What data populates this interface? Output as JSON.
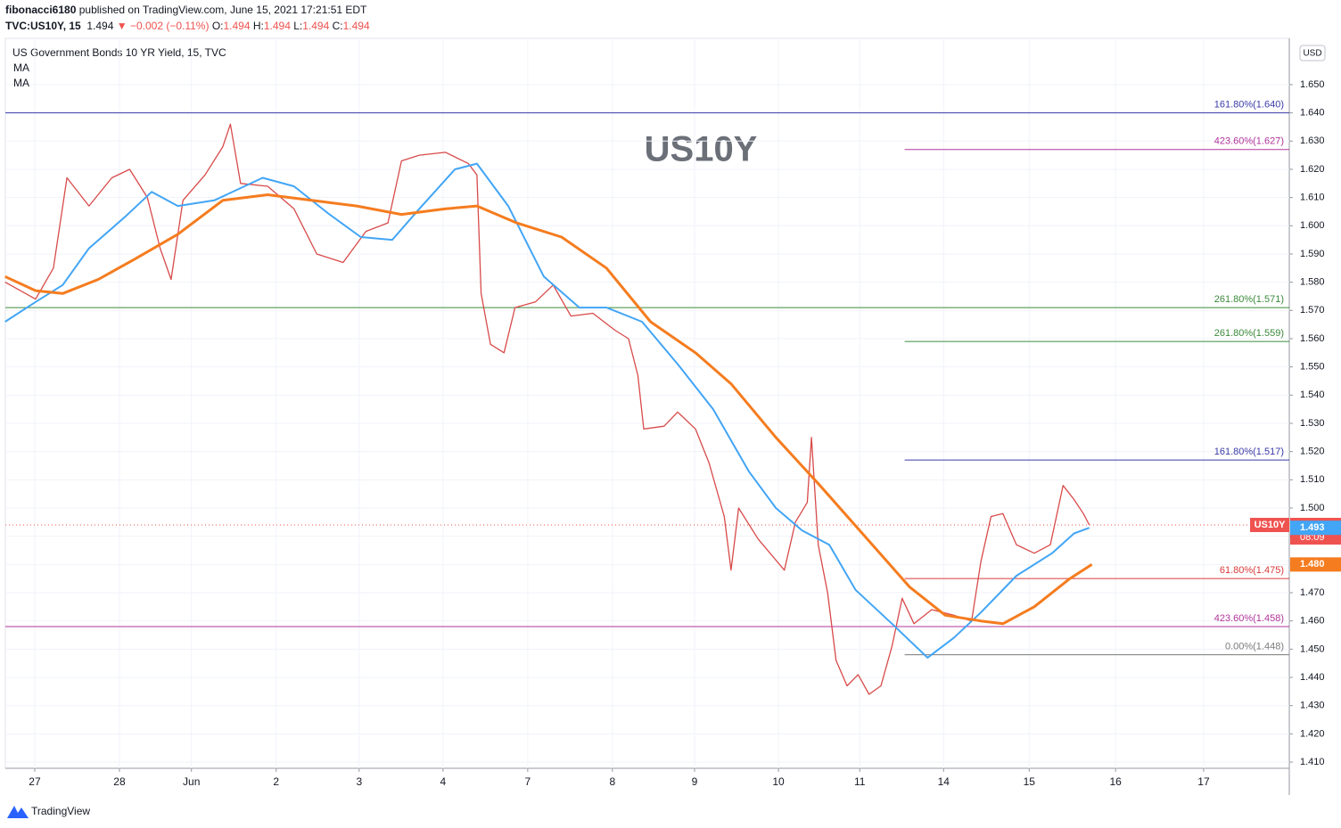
{
  "header": {
    "author": "fibonacci6180",
    "published": "published on TradingView.com, June 15, 2021 17:21:51 EDT",
    "symbol": "TVC:US10Y, 15",
    "last": "1.494",
    "change": "▼ −0.002 (−0.11%)",
    "ohlc": [
      {
        "key": "O:",
        "value": "1.494"
      },
      {
        "key": "H:",
        "value": "1.494"
      },
      {
        "key": "L:",
        "value": "1.494"
      },
      {
        "key": "C:",
        "value": "1.494"
      }
    ]
  },
  "footer": {
    "brand": "TradingView"
  },
  "chart_data": {
    "type": "line",
    "title": "US10Y",
    "instrument": "US Government Bonds 10 YR Yield, 15, TVC",
    "currency": "USD",
    "xlim": [
      -0.347,
      14.811
    ],
    "ylim": [
      1.4078,
      1.6664
    ],
    "grid": true,
    "xticks": [
      {
        "value": 0,
        "label": "27"
      },
      {
        "value": 1,
        "label": "28"
      },
      {
        "value": 1.85,
        "label": "Jun"
      },
      {
        "value": 2.85,
        "label": "2"
      },
      {
        "value": 3.83,
        "label": "3"
      },
      {
        "value": 4.82,
        "label": "4"
      },
      {
        "value": 5.82,
        "label": "7"
      },
      {
        "value": 6.82,
        "label": "8"
      },
      {
        "value": 7.79,
        "label": "9"
      },
      {
        "value": 8.78,
        "label": "10"
      },
      {
        "value": 9.74,
        "label": "11"
      },
      {
        "value": 10.73,
        "label": "14"
      },
      {
        "value": 11.74,
        "label": "15"
      },
      {
        "value": 12.76,
        "label": "16"
      },
      {
        "value": 13.8,
        "label": "17"
      }
    ],
    "yticks": [
      {
        "value": 1.41,
        "label": "1.410"
      },
      {
        "value": 1.42,
        "label": "1.420"
      },
      {
        "value": 1.43,
        "label": "1.430"
      },
      {
        "value": 1.44,
        "label": "1.440"
      },
      {
        "value": 1.45,
        "label": "1.450"
      },
      {
        "value": 1.46,
        "label": "1.460"
      },
      {
        "value": 1.47,
        "label": "1.470"
      },
      {
        "value": 1.48,
        "label": "1.480"
      },
      {
        "value": 1.49,
        "label": "1.490"
      },
      {
        "value": 1.5,
        "label": "1.500"
      },
      {
        "value": 1.51,
        "label": "1.510"
      },
      {
        "value": 1.52,
        "label": "1.520"
      },
      {
        "value": 1.53,
        "label": "1.530"
      },
      {
        "value": 1.54,
        "label": "1.540"
      },
      {
        "value": 1.55,
        "label": "1.550"
      },
      {
        "value": 1.56,
        "label": "1.560"
      },
      {
        "value": 1.57,
        "label": "1.570"
      },
      {
        "value": 1.58,
        "label": "1.580"
      },
      {
        "value": 1.59,
        "label": "1.590"
      },
      {
        "value": 1.6,
        "label": "1.600"
      },
      {
        "value": 1.61,
        "label": "1.610"
      },
      {
        "value": 1.62,
        "label": "1.620"
      },
      {
        "value": 1.63,
        "label": "1.630"
      },
      {
        "value": 1.64,
        "label": "1.640"
      },
      {
        "value": 1.65,
        "label": "1.650"
      }
    ],
    "series": [
      {
        "name": "US10Y",
        "color": "#d84a4a",
        "width": 1.3,
        "x": [
          -0.35,
          0.01,
          0.22,
          0.38,
          0.64,
          0.91,
          1.12,
          1.33,
          1.48,
          1.61,
          1.75,
          2.01,
          2.22,
          2.31,
          2.43,
          2.75,
          3.06,
          3.33,
          3.64,
          3.91,
          4.17,
          4.33,
          4.54,
          4.85,
          5.12,
          5.22,
          5.27,
          5.38,
          5.54,
          5.67,
          5.91,
          6.12,
          6.33,
          6.59,
          6.85,
          7.01,
          7.12,
          7.19,
          7.43,
          7.59,
          7.8,
          7.96,
          8.14,
          8.22,
          8.31,
          8.54,
          8.85,
          8.98,
          9.12,
          9.17,
          9.25,
          9.36,
          9.46,
          9.59,
          9.72,
          9.85,
          9.99,
          10.12,
          10.24,
          10.38,
          10.59,
          10.85,
          11.06,
          11.17,
          11.29,
          11.43,
          11.59,
          11.8,
          11.99,
          12.14,
          12.27,
          12.38,
          12.45
        ],
        "values": [
          1.58,
          1.574,
          1.585,
          1.617,
          1.607,
          1.617,
          1.62,
          1.61,
          1.592,
          1.581,
          1.609,
          1.618,
          1.628,
          1.636,
          1.615,
          1.614,
          1.606,
          1.59,
          1.587,
          1.598,
          1.601,
          1.623,
          1.625,
          1.626,
          1.622,
          1.618,
          1.576,
          1.558,
          1.555,
          1.571,
          1.573,
          1.579,
          1.568,
          1.569,
          1.563,
          1.56,
          1.547,
          1.528,
          1.529,
          1.534,
          1.528,
          1.516,
          1.497,
          1.478,
          1.5,
          1.489,
          1.478,
          1.495,
          1.502,
          1.525,
          1.487,
          1.47,
          1.446,
          1.437,
          1.441,
          1.434,
          1.437,
          1.451,
          1.468,
          1.459,
          1.464,
          1.462,
          1.46,
          1.481,
          1.497,
          1.498,
          1.487,
          1.484,
          1.487,
          1.508,
          1.503,
          1.498,
          1.494
        ]
      },
      {
        "name": "MA",
        "color": "#42a5f5",
        "width": 2,
        "x": [
          -0.35,
          0.01,
          0.33,
          0.64,
          1.06,
          1.38,
          1.69,
          2.12,
          2.69,
          3.06,
          3.48,
          3.85,
          4.22,
          4.54,
          4.96,
          5.22,
          5.59,
          6.01,
          6.43,
          6.75,
          7.17,
          7.59,
          8.01,
          8.43,
          8.75,
          9.06,
          9.38,
          9.69,
          10.12,
          10.54,
          10.85,
          11.17,
          11.59,
          12.01,
          12.27,
          12.45
        ],
        "values": [
          1.566,
          1.573,
          1.579,
          1.592,
          1.603,
          1.612,
          1.607,
          1.609,
          1.617,
          1.614,
          1.604,
          1.596,
          1.595,
          1.606,
          1.62,
          1.622,
          1.607,
          1.582,
          1.571,
          1.571,
          1.566,
          1.551,
          1.535,
          1.513,
          1.5,
          1.492,
          1.487,
          1.471,
          1.459,
          1.447,
          1.454,
          1.463,
          1.476,
          1.484,
          1.491,
          1.493
        ]
      },
      {
        "name": "MA",
        "color": "#f57c1f",
        "width": 3,
        "x": [
          -0.35,
          0.01,
          0.33,
          0.75,
          1.17,
          1.69,
          2.22,
          2.75,
          3.27,
          3.8,
          4.33,
          4.85,
          5.22,
          5.69,
          6.22,
          6.75,
          7.27,
          7.8,
          8.22,
          8.75,
          9.27,
          9.8,
          10.33,
          10.75,
          11.17,
          11.43,
          11.8,
          12.22,
          12.48
        ],
        "values": [
          1.582,
          1.577,
          1.576,
          1.581,
          1.588,
          1.597,
          1.609,
          1.611,
          1.609,
          1.607,
          1.604,
          1.606,
          1.607,
          1.601,
          1.596,
          1.585,
          1.566,
          1.555,
          1.544,
          1.525,
          1.508,
          1.49,
          1.472,
          1.462,
          1.46,
          1.459,
          1.465,
          1.475,
          1.48
        ]
      }
    ],
    "levels": [
      {
        "label": "161.80%(1.640)",
        "value": 1.64,
        "color": "#3a3aa8"
      },
      {
        "label": "423.60%(1.627)",
        "value": 1.627,
        "color": "#b0359b",
        "x_start": 10.27
      },
      {
        "label": "261.80%(1.571)",
        "value": 1.571,
        "color": "#3b8a3b"
      },
      {
        "label": "261.80%(1.559)",
        "value": 1.559,
        "color": "#3b8a3b",
        "x_start": 10.27
      },
      {
        "label": "161.80%(1.517)",
        "value": 1.517,
        "color": "#3a3aa8",
        "x_start": 10.27
      },
      {
        "label": "61.80%(1.475)",
        "value": 1.475,
        "color": "#d83a3a",
        "x_start": 10.27
      },
      {
        "label": "423.60%(1.458)",
        "value": 1.458,
        "color": "#b0359b"
      },
      {
        "label": "0.00%(1.448)",
        "value": 1.448,
        "color": "#7a7a7a",
        "x_start": 10.27
      }
    ],
    "price_tags": [
      {
        "name": "US10Y",
        "value": 1.494,
        "countdown": "08:09",
        "color": "#ef5350"
      },
      {
        "value": 1.493,
        "color": "#42a5f5"
      },
      {
        "value": {
          "value": 1.48,
          "label": "1.480"
        },
        "color": "#f57c1f"
      }
    ]
  }
}
